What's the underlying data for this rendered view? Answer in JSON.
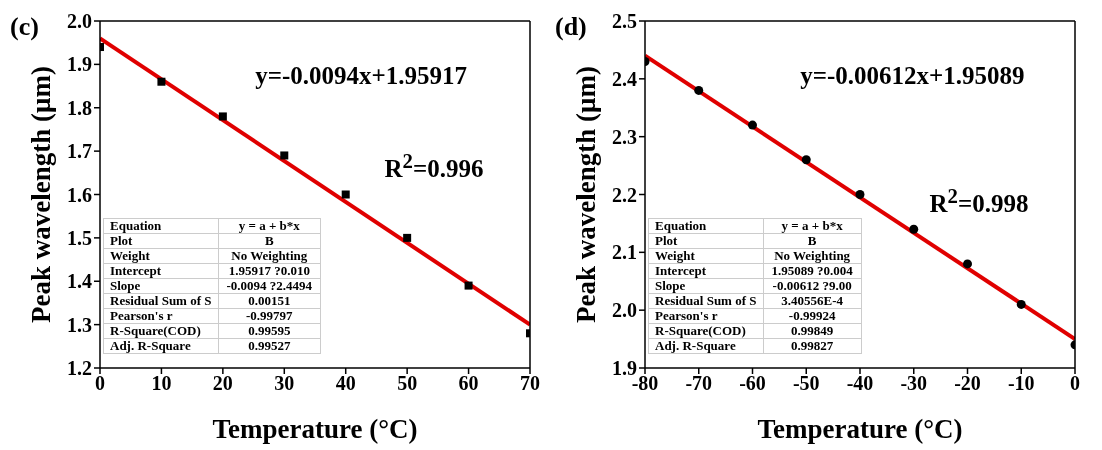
{
  "chart_data": [
    {
      "type": "scatter",
      "title": "(c)",
      "xlabel": "Temperature (°C)",
      "ylabel": "Peak wavelength (μm)",
      "xlim": [
        0,
        70
      ],
      "xticks": [
        0,
        10,
        20,
        30,
        40,
        50,
        60,
        70
      ],
      "ylim": [
        1.2,
        2.0
      ],
      "yticks": [
        1.2,
        1.3,
        1.4,
        1.5,
        1.6,
        1.7,
        1.8,
        1.9,
        {
          "value": 2.0,
          "label": "2.0"
        }
      ],
      "grid": false,
      "legend": false,
      "series": [
        {
          "color": "#000000",
          "marker": "square",
          "x": [
            0,
            10,
            20,
            30,
            40,
            50,
            60,
            70
          ],
          "values": [
            1.94,
            1.86,
            1.78,
            1.69,
            1.6,
            1.5,
            1.39,
            1.28
          ]
        },
        {
          "type": "line",
          "color": "#e00000",
          "marker": "none",
          "line_style": "solid",
          "x": [
            0,
            70
          ],
          "values": [
            1.96,
            1.3
          ]
        }
      ],
      "annotations": [
        "y=-0.0094x+1.95917",
        "R$^{2}$=0.996",
        "Equation",
        "y = a + b*x",
        "Plot",
        "B",
        "Weight",
        "No Weighting",
        "Intercept",
        "1.95917 ?0.010",
        "Slope",
        "-0.0094 ?2.4494",
        "Residual Sum of S",
        "0.00151",
        "Pearson's r",
        "-0.99797",
        "R-Square(COD)",
        "0.99595",
        "Adj. R-Square",
        "0.99527"
      ]
    },
    {
      "type": "scatter",
      "title": "(d)",
      "xlabel": "Temperature (°C)",
      "ylabel": "Peak wavelength (μm)",
      "xlim": [
        -80,
        0
      ],
      "xticks": [
        -80,
        -70,
        -60,
        -50,
        -40,
        -30,
        -20,
        -10,
        0
      ],
      "ylim": [
        1.9,
        2.5
      ],
      "yticks": [
        1.9,
        {
          "value": 2.0,
          "label": "2.0"
        },
        2.1,
        2.2,
        2.3,
        2.4,
        2.5
      ],
      "grid": false,
      "legend": false,
      "series": [
        {
          "color": "#000000",
          "marker": "circle",
          "x": [
            -80,
            -70,
            -60,
            -50,
            -40,
            -30,
            -20,
            -10,
            0
          ],
          "values": [
            2.43,
            2.38,
            2.32,
            2.26,
            2.2,
            2.14,
            2.08,
            2.01,
            1.94
          ]
        },
        {
          "type": "line",
          "color": "#e00000",
          "marker": "none",
          "line_style": "solid",
          "x": [
            -80,
            0
          ],
          "values": [
            2.44,
            1.95
          ]
        }
      ],
      "annotations": [
        "y=-0.00612x+1.95089",
        "R$^{2}$=0.998",
        "Equation",
        "y = a + b*x",
        "Plot",
        "B",
        "Weight",
        "No Weighting",
        "Intercept",
        "1.95089 ?0.004",
        "Slope",
        "-0.00612 ?9.00",
        "Residual Sum of S",
        "3.40556E-4",
        "Pearson's r",
        "-0.99924",
        "R-Square(COD)",
        "0.99849",
        "Adj. R-Square",
        "0.99827"
      ]
    }
  ]
}
